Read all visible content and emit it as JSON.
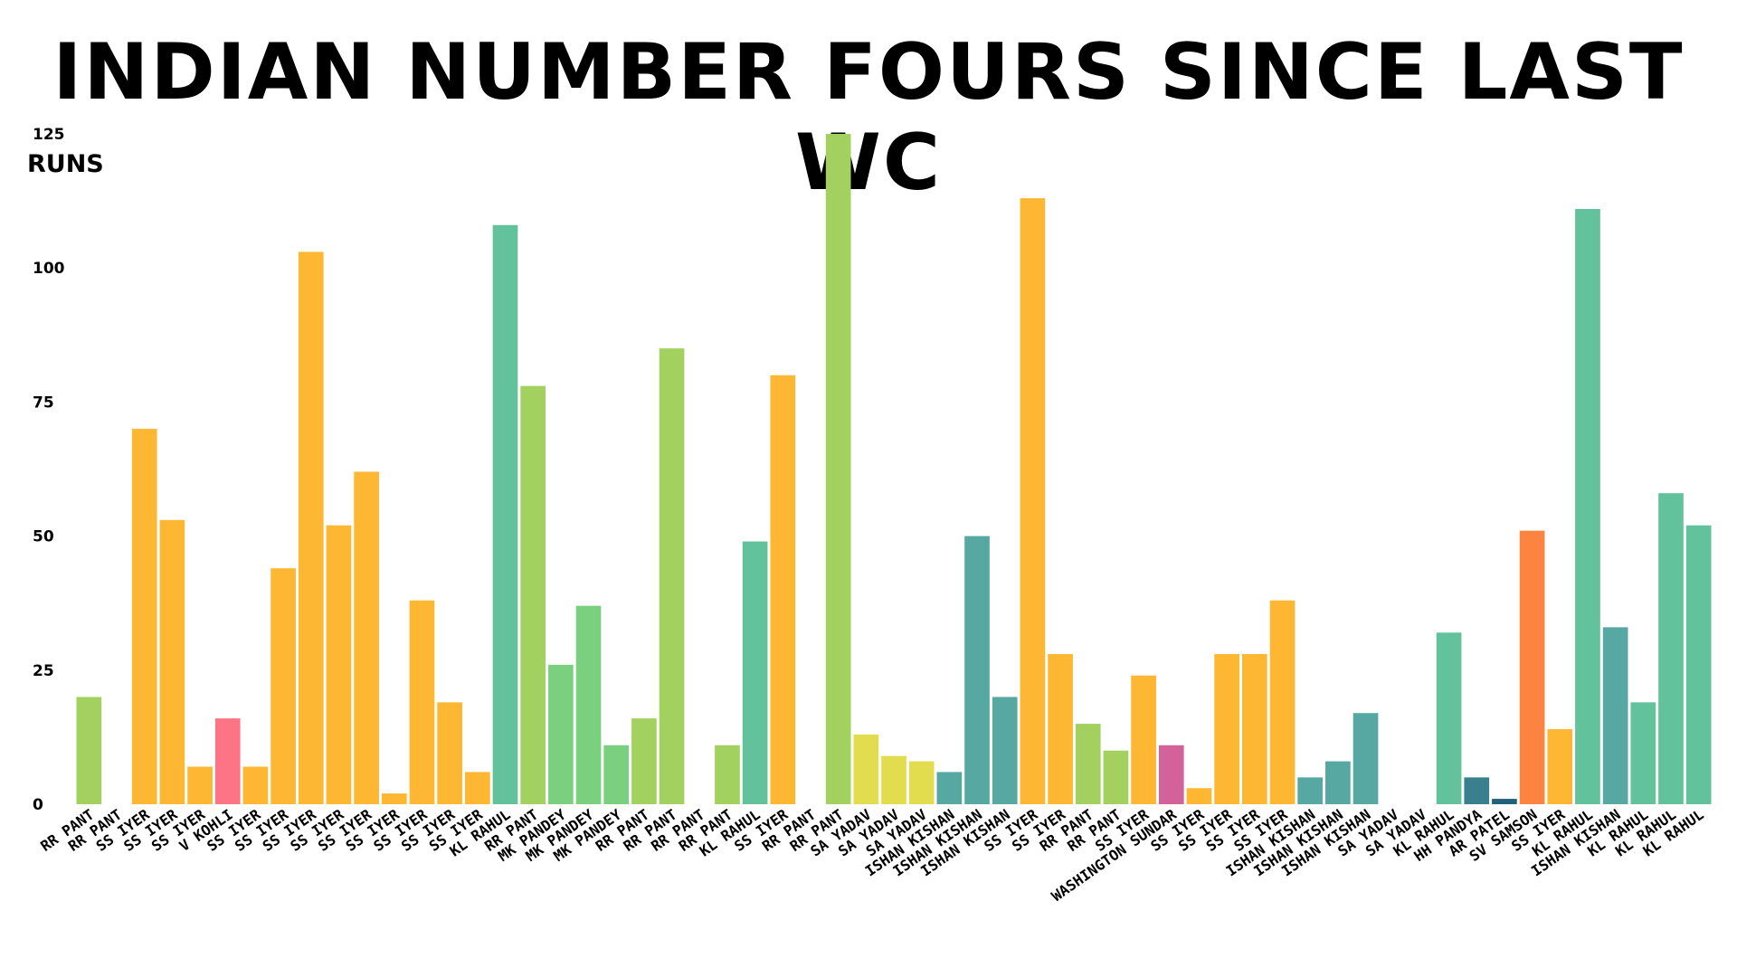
{
  "chart_data": {
    "type": "bar",
    "title": "INDIAN NUMBER FOURS SINCE LAST WC",
    "ylabel": "RUNS",
    "xlabel": "",
    "ylim": [
      0,
      125
    ],
    "yticks": [
      0,
      25,
      50,
      75,
      100,
      125
    ],
    "grid": false,
    "categories": [
      "RR PANT",
      "RR PANT",
      "SS IYER",
      "SS IYER",
      "SS IYER",
      "V KOHLI",
      "SS IYER",
      "SS IYER",
      "SS IYER",
      "SS IYER",
      "SS IYER",
      "SS IYER",
      "SS IYER",
      "SS IYER",
      "SS IYER",
      "KL RAHUL",
      "RR PANT",
      "MK PANDEY",
      "MK PANDEY",
      "MK PANDEY",
      "RR PANT",
      "RR PANT",
      "RR PANT",
      "RR PANT",
      "KL RAHUL",
      "SS IYER",
      "RR PANT",
      "RR PANT",
      "SA YADAV",
      "SA YADAV",
      "SA YADAV",
      "ISHAN KISHAN",
      "ISHAN KISHAN",
      "ISHAN KISHAN",
      "SS IYER",
      "SS IYER",
      "RR PANT",
      "RR PANT",
      "SS IYER",
      "WASHINGTON SUNDAR",
      "SS IYER",
      "SS IYER",
      "SS IYER",
      "SS IYER",
      "ISHAN KISHAN",
      "ISHAN KISHAN",
      "ISHAN KISHAN",
      "SA YADAV",
      "SA YADAV",
      "KL RAHUL",
      "HH PANDYA",
      "AR PATEL",
      "SV SAMSON",
      "SS IYER",
      "KL RAHUL",
      "ISHAN KISHAN",
      "KL RAHUL",
      "KL RAHUL",
      "KL RAHUL"
    ],
    "values": [
      20,
      0,
      70,
      53,
      7,
      16,
      7,
      44,
      103,
      52,
      62,
      2,
      38,
      19,
      6,
      108,
      78,
      26,
      37,
      11,
      16,
      85,
      0,
      11,
      49,
      80,
      0,
      125,
      13,
      9,
      8,
      6,
      50,
      20,
      113,
      28,
      15,
      10,
      24,
      11,
      3,
      28,
      28,
      38,
      5,
      8,
      17,
      0,
      0,
      32,
      5,
      1,
      51,
      14,
      111,
      33,
      19,
      58,
      52
    ],
    "colors": {
      "RR PANT": "#a2d15f",
      "SS IYER": "#fdb733",
      "V KOHLI": "#fc7485",
      "KL RAHUL": "#62c29c",
      "MK PANDEY": "#7bd07f",
      "SA YADAV": "#e1dd4f",
      "ISHAN KISHAN": "#57a8a2",
      "WASHINGTON SUNDAR": "#d3619a",
      "HH PANDYA": "#3a7f8e",
      "AR PATEL": "#1f6279",
      "SV SAMSON": "#fd8341"
    }
  }
}
